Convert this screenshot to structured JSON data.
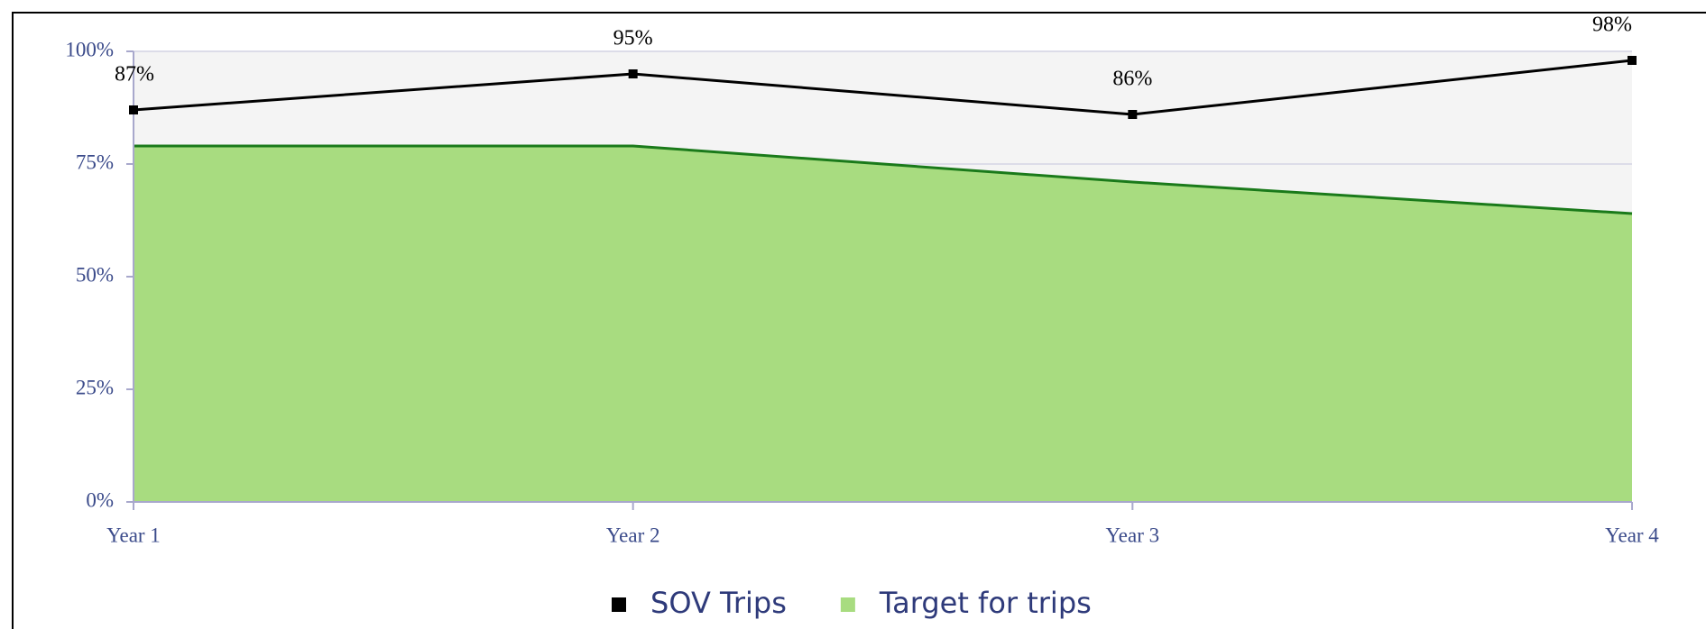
{
  "chart_data": {
    "type": "line-area",
    "categories": [
      "Year 1",
      "Year 2",
      "Year 3",
      "Year 4"
    ],
    "series": [
      {
        "name": "SOV Trips",
        "kind": "line",
        "color": "#000000",
        "values": [
          87,
          95,
          86,
          98
        ],
        "value_labels": [
          "87%",
          "95%",
          "86%",
          "98%"
        ]
      },
      {
        "name": "Target for trips",
        "kind": "area",
        "color": "#a8dc80",
        "values": [
          79,
          79,
          71,
          64
        ]
      }
    ],
    "ylim": [
      0,
      100
    ],
    "yticks": [
      {
        "value": 0,
        "label": "0%"
      },
      {
        "value": 25,
        "label": "25%"
      },
      {
        "value": 50,
        "label": "50%"
      },
      {
        "value": 75,
        "label": "75%"
      },
      {
        "value": 100,
        "label": "100%"
      }
    ],
    "legend": "bottom"
  }
}
